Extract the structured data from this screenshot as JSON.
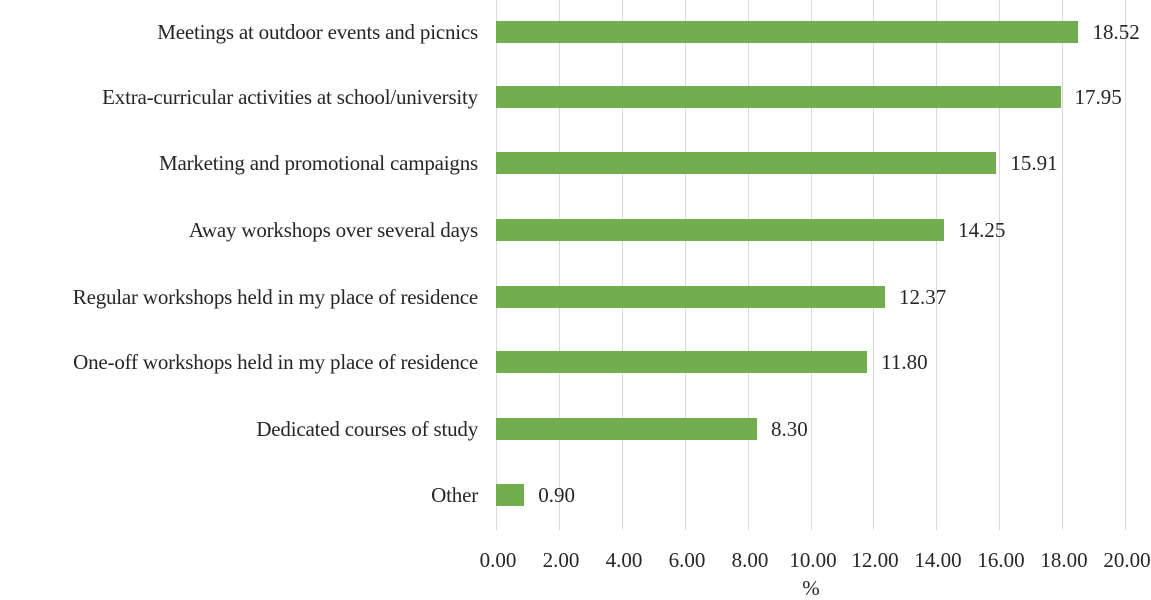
{
  "chart_data": {
    "type": "bar",
    "orientation": "horizontal",
    "title": "",
    "xlabel": "%",
    "ylabel": "",
    "xlim": [
      0,
      20
    ],
    "grid": true,
    "legend": null,
    "bar_color": "#72ad4e",
    "categories": [
      "Meetings at outdoor events and picnics",
      "Extra-curricular activities at school/university",
      "Marketing and promotional campaigns",
      "Away workshops over several days",
      "Regular workshops held in my place of residence",
      "One-off workshops held in my place of residence",
      "Dedicated courses of study",
      "Other"
    ],
    "values": [
      18.52,
      17.95,
      15.91,
      14.25,
      12.37,
      11.8,
      8.3,
      0.9
    ],
    "value_labels": [
      "18.52",
      "17.95",
      "15.91",
      "14.25",
      "12.37",
      "11.80",
      "8.30",
      "0.90"
    ],
    "x_ticks": [
      "0.00",
      "2.00",
      "4.00",
      "6.00",
      "8.00",
      "10.00",
      "12.00",
      "14.00",
      "16.00",
      "18.00",
      "20.00"
    ]
  }
}
